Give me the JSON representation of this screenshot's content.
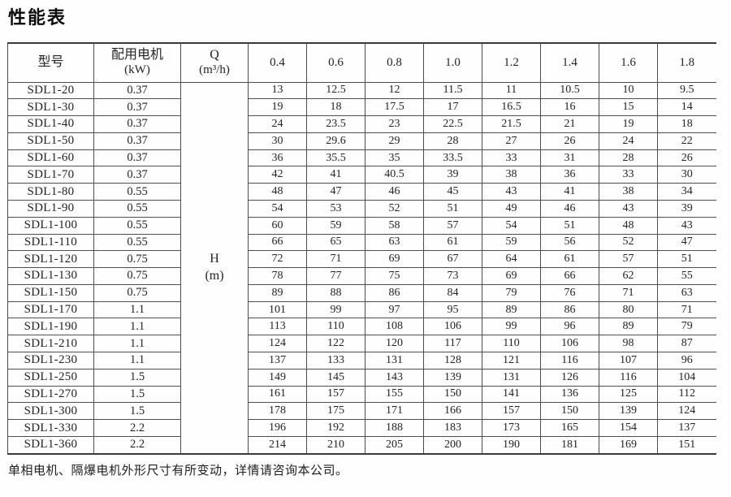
{
  "page": {
    "title": "性能表",
    "footnote": "单相电机、隔爆电机外形尺寸有所变动，详情请咨询本公司。"
  },
  "table": {
    "headers": {
      "model": "型号",
      "motor_line1": "配用电机",
      "motor_line2": "(kW)",
      "flow_line1": "Q",
      "flow_line2": "(m³/h)",
      "head_line1": "H",
      "head_line2": "(m)"
    },
    "flow_values": [
      "0.4",
      "0.6",
      "0.8",
      "1.0",
      "1.2",
      "1.4",
      "1.6",
      "1.8"
    ],
    "rows": [
      {
        "model": "SDL1-20",
        "power": "0.37",
        "head": [
          "13",
          "12.5",
          "12",
          "11.5",
          "11",
          "10.5",
          "10",
          "9.5"
        ]
      },
      {
        "model": "SDL1-30",
        "power": "0.37",
        "head": [
          "19",
          "18",
          "17.5",
          "17",
          "16.5",
          "16",
          "15",
          "14"
        ]
      },
      {
        "model": "SDL1-40",
        "power": "0.37",
        "head": [
          "24",
          "23.5",
          "23",
          "22.5",
          "21.5",
          "21",
          "19",
          "18"
        ]
      },
      {
        "model": "SDL1-50",
        "power": "0.37",
        "head": [
          "30",
          "29.6",
          "29",
          "28",
          "27",
          "26",
          "24",
          "22"
        ]
      },
      {
        "model": "SDL1-60",
        "power": "0.37",
        "head": [
          "36",
          "35.5",
          "35",
          "33.5",
          "33",
          "31",
          "28",
          "26"
        ]
      },
      {
        "model": "SDL1-70",
        "power": "0.37",
        "head": [
          "42",
          "41",
          "40.5",
          "39",
          "38",
          "36",
          "33",
          "30"
        ]
      },
      {
        "model": "SDL1-80",
        "power": "0.55",
        "head": [
          "48",
          "47",
          "46",
          "45",
          "43",
          "41",
          "38",
          "34"
        ]
      },
      {
        "model": "SDL1-90",
        "power": "0.55",
        "head": [
          "54",
          "53",
          "52",
          "51",
          "49",
          "46",
          "43",
          "39"
        ]
      },
      {
        "model": "SDL1-100",
        "power": "0.55",
        "head": [
          "60",
          "59",
          "58",
          "57",
          "54",
          "51",
          "48",
          "43"
        ]
      },
      {
        "model": "SDL1-110",
        "power": "0.55",
        "head": [
          "66",
          "65",
          "63",
          "61",
          "59",
          "56",
          "52",
          "47"
        ]
      },
      {
        "model": "SDL1-120",
        "power": "0.75",
        "head": [
          "72",
          "71",
          "69",
          "67",
          "64",
          "61",
          "57",
          "51"
        ]
      },
      {
        "model": "SDL1-130",
        "power": "0.75",
        "head": [
          "78",
          "77",
          "75",
          "73",
          "69",
          "66",
          "62",
          "55"
        ]
      },
      {
        "model": "SDL1-150",
        "power": "0.75",
        "head": [
          "89",
          "88",
          "86",
          "84",
          "79",
          "76",
          "71",
          "63"
        ]
      },
      {
        "model": "SDL1-170",
        "power": "1.1",
        "head": [
          "101",
          "99",
          "97",
          "95",
          "89",
          "86",
          "80",
          "71"
        ]
      },
      {
        "model": "SDL1-190",
        "power": "1.1",
        "head": [
          "113",
          "110",
          "108",
          "106",
          "99",
          "96",
          "89",
          "79"
        ]
      },
      {
        "model": "SDL1-210",
        "power": "1.1",
        "head": [
          "124",
          "122",
          "120",
          "117",
          "110",
          "106",
          "98",
          "87"
        ]
      },
      {
        "model": "SDL1-230",
        "power": "1.1",
        "head": [
          "137",
          "133",
          "131",
          "128",
          "121",
          "116",
          "107",
          "96"
        ]
      },
      {
        "model": "SDL1-250",
        "power": "1.5",
        "head": [
          "149",
          "145",
          "143",
          "139",
          "131",
          "126",
          "116",
          "104"
        ]
      },
      {
        "model": "SDL1-270",
        "power": "1.5",
        "head": [
          "161",
          "157",
          "155",
          "150",
          "141",
          "136",
          "125",
          "112"
        ]
      },
      {
        "model": "SDL1-300",
        "power": "1.5",
        "head": [
          "178",
          "175",
          "171",
          "166",
          "157",
          "150",
          "139",
          "124"
        ]
      },
      {
        "model": "SDL1-330",
        "power": "2.2",
        "head": [
          "196",
          "192",
          "188",
          "183",
          "173",
          "165",
          "154",
          "137"
        ]
      },
      {
        "model": "SDL1-360",
        "power": "2.2",
        "head": [
          "214",
          "210",
          "205",
          "200",
          "190",
          "181",
          "169",
          "151"
        ]
      }
    ]
  }
}
